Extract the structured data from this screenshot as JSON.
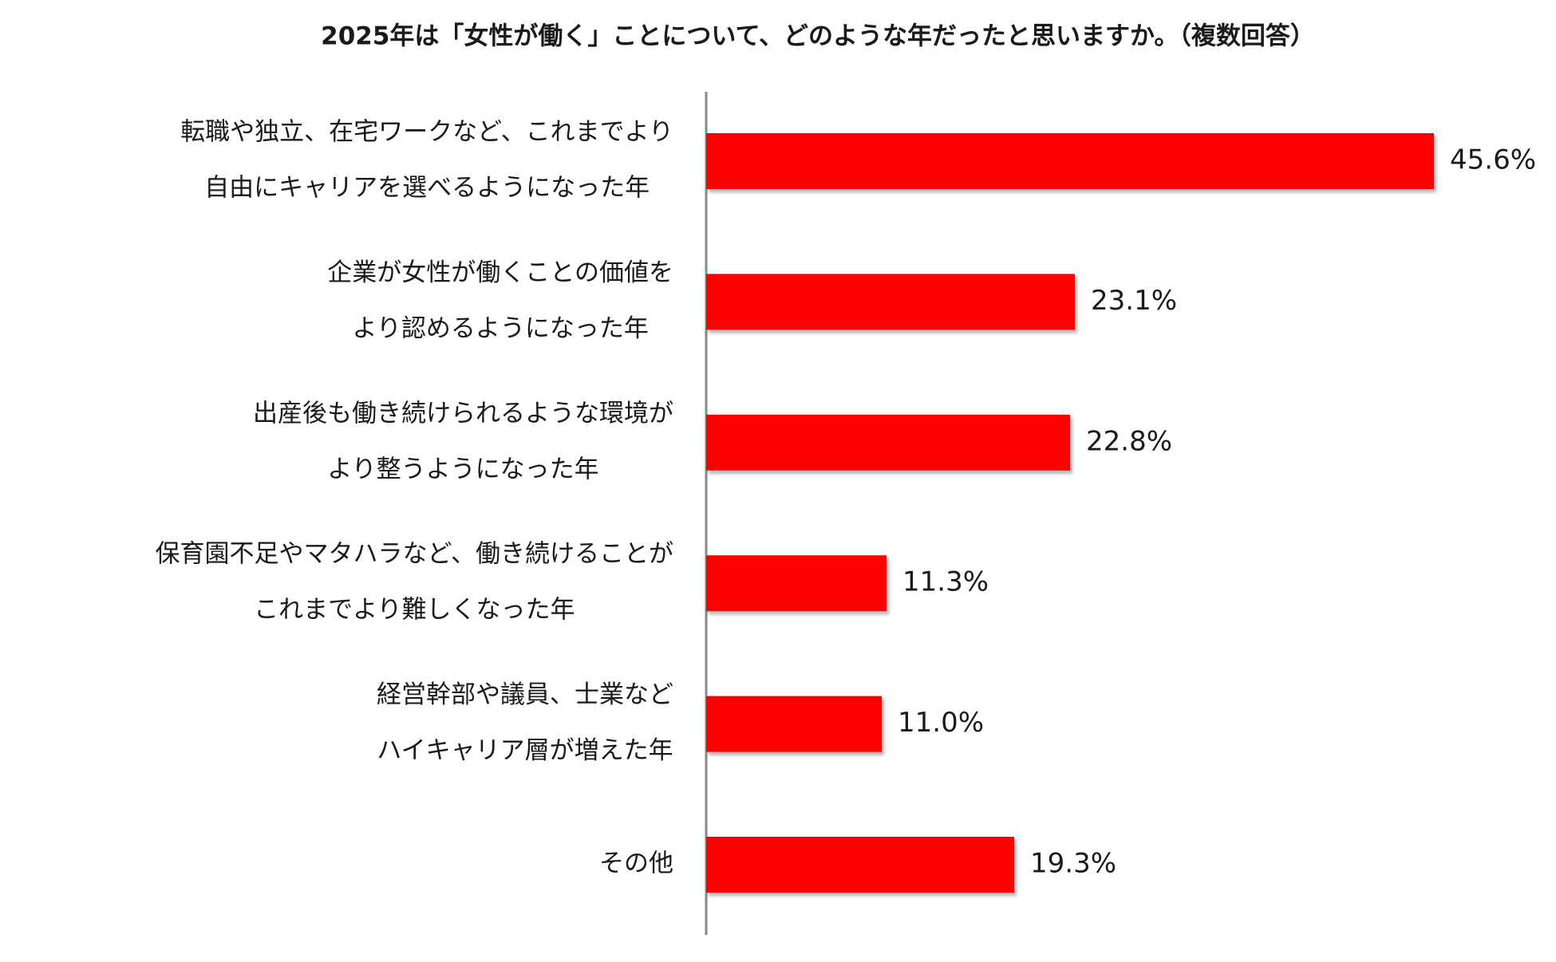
{
  "chart_data": {
    "type": "barh",
    "title": "2025年は「女性が働く」ことについて、どのような年だったと思いますか。（複数回答）",
    "categories": [
      [
        "転職や独立、在宅ワークなど、これまでより",
        "自由にキャリアを選べるようになった年"
      ],
      [
        "企業が女性が働くことの価値を",
        "より認めるようになった年"
      ],
      [
        "出産後も働き続けられるような環境が",
        "より整うようになった年"
      ],
      [
        "保育園不足やマタハラなど、働き続けることが",
        "これまでより難しくなった年"
      ],
      [
        "経営幹部や議員、士業など",
        "ハイキャリア層が増えた年"
      ],
      [
        "その他"
      ]
    ],
    "values": [
      45.6,
      23.1,
      22.8,
      11.3,
      11.0,
      19.3
    ],
    "value_labels": [
      "45.6%",
      "23.1%",
      "22.8%",
      "11.3%",
      "11.0%",
      "19.3%"
    ],
    "color": "#ff0000"
  }
}
